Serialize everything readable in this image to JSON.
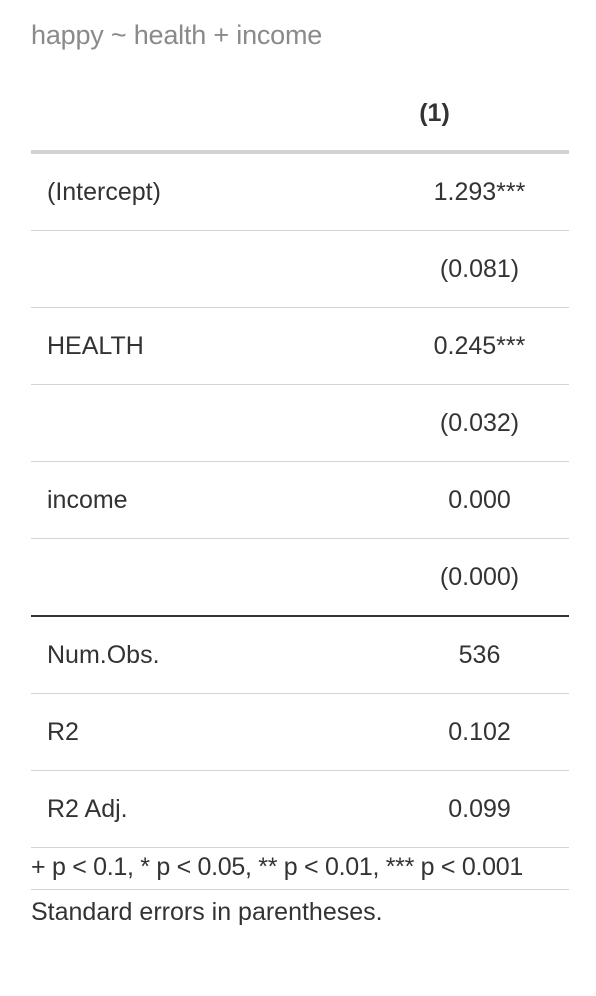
{
  "caption": "happy ~ health + income",
  "table": {
    "header": {
      "label": "",
      "model": "(1)"
    },
    "rows": [
      {
        "label": "(Intercept)",
        "value": "1.293***"
      },
      {
        "label": "",
        "value": "(0.081)"
      },
      {
        "label": "HEALTH",
        "value": "0.245***"
      },
      {
        "label": "",
        "value": "(0.032)"
      },
      {
        "label": "income",
        "value": "0.000"
      },
      {
        "label": "",
        "value": "(0.000)"
      },
      {
        "label": "Num.Obs.",
        "value": "536"
      },
      {
        "label": "R2",
        "value": "0.102"
      },
      {
        "label": "R2 Adj.",
        "value": "0.099"
      }
    ]
  },
  "notes": {
    "significance": "+ p < 0.1, * p < 0.05, ** p < 0.01, *** p < 0.001",
    "standard_errors": "Standard errors in parentheses."
  }
}
